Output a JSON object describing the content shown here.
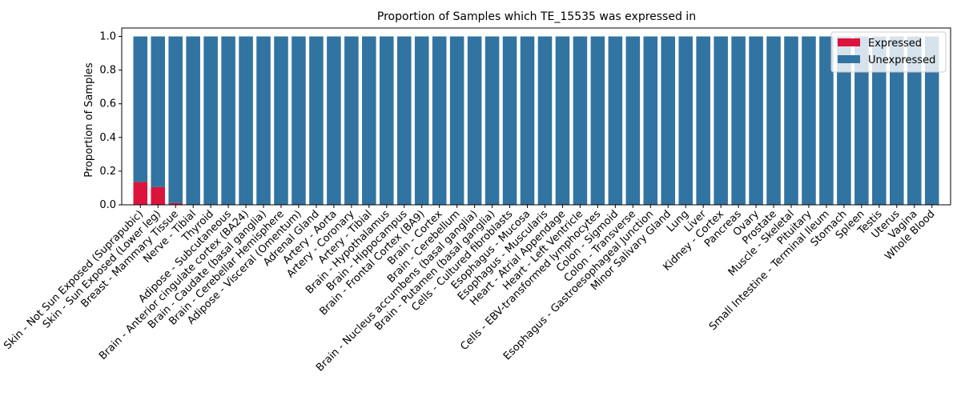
{
  "chart_data": {
    "type": "bar",
    "stacked": true,
    "title": "Proportion of Samples which TE_15535 was expressed in",
    "xlabel": "",
    "ylabel": "Proportion of Samples",
    "ylim": [
      0,
      1.05
    ],
    "yticks": [
      "0.0",
      "0.2",
      "0.4",
      "0.6",
      "0.8",
      "1.0"
    ],
    "grid": false,
    "legend_position": "top-right",
    "categories": [
      "Skin - Not Sun Exposed (Suprapubic)",
      "Skin - Sun Exposed (Lower leg)",
      "Breast - Mammary Tissue",
      "Nerve - Tibial",
      "Thyroid",
      "Adipose - Subcutaneous",
      "Brain - Anterior cingulate cortex (BA24)",
      "Brain - Caudate (basal ganglia)",
      "Brain - Cerebellar Hemisphere",
      "Adipose - Visceral (Omentum)",
      "Adrenal Gland",
      "Artery - Aorta",
      "Artery - Coronary",
      "Artery - Tibial",
      "Brain - Hypothalamus",
      "Brain - Hippocampus",
      "Brain - Frontal Cortex (BA9)",
      "Brain - Cortex",
      "Brain - Cerebellum",
      "Brain - Nucleus accumbens (basal ganglia)",
      "Brain - Putamen (basal ganglia)",
      "Cells - Cultured fibroblasts",
      "Esophagus - Mucosa",
      "Esophagus - Muscularis",
      "Heart - Atrial Appendage",
      "Heart - Left Ventricle",
      "Cells - EBV-transformed lymphocytes",
      "Colon - Sigmoid",
      "Colon - Transverse",
      "Esophagus - Gastroesophageal Junction",
      "Minor Salivary Gland",
      "Lung",
      "Liver",
      "Kidney - Cortex",
      "Pancreas",
      "Ovary",
      "Prostate",
      "Muscle - Skeletal",
      "Pituitary",
      "Small Intestine - Terminal Ileum",
      "Stomach",
      "Spleen",
      "Testis",
      "Uterus",
      "Vagina",
      "Whole Blood"
    ],
    "series": [
      {
        "name": "Expressed",
        "color": "#dc143c",
        "values": [
          0.135,
          0.105,
          0.01,
          0,
          0,
          0,
          0,
          0,
          0,
          0,
          0,
          0,
          0,
          0,
          0,
          0,
          0,
          0,
          0,
          0,
          0,
          0,
          0,
          0,
          0,
          0,
          0,
          0,
          0,
          0,
          0,
          0,
          0,
          0,
          0,
          0,
          0,
          0,
          0,
          0,
          0,
          0,
          0,
          0,
          0,
          0
        ]
      },
      {
        "name": "Unexpressed",
        "color": "#3274a1",
        "values": [
          0.865,
          0.895,
          0.99,
          1,
          1,
          1,
          1,
          1,
          1,
          1,
          1,
          1,
          1,
          1,
          1,
          1,
          1,
          1,
          1,
          1,
          1,
          1,
          1,
          1,
          1,
          1,
          1,
          1,
          1,
          1,
          1,
          1,
          1,
          1,
          1,
          1,
          1,
          1,
          1,
          1,
          1,
          1,
          1,
          1,
          1,
          1
        ]
      }
    ]
  }
}
